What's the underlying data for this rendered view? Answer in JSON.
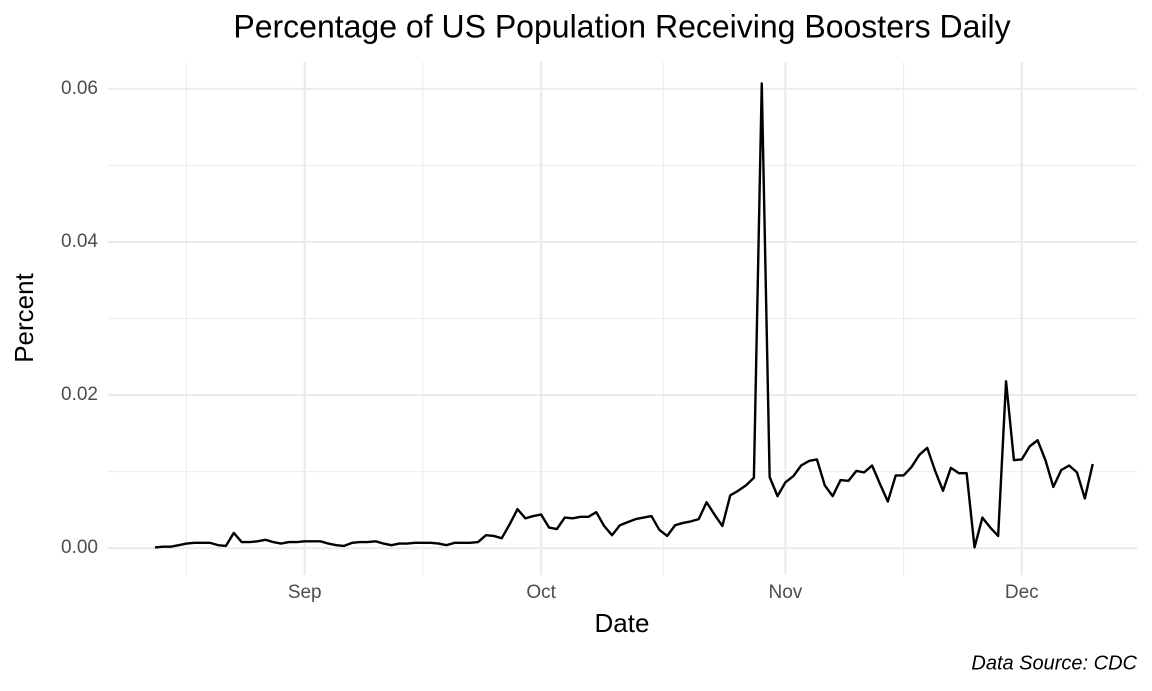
{
  "chart_data": {
    "type": "line",
    "title": "Percentage of US Population Receiving Boosters Daily",
    "xlabel": "Date",
    "ylabel": "Percent",
    "caption": "Data Source: CDC",
    "categories": [
      null,
      null,
      null,
      null,
      null,
      null,
      null,
      null,
      null,
      null,
      null,
      null,
      null,
      null,
      null,
      null,
      null,
      null,
      null,
      "Sep",
      null,
      null,
      null,
      null,
      null,
      null,
      null,
      null,
      null,
      null,
      null,
      null,
      null,
      null,
      null,
      null,
      null,
      null,
      null,
      null,
      null,
      null,
      null,
      null,
      null,
      null,
      null,
      null,
      null,
      "Oct",
      null,
      null,
      null,
      null,
      null,
      null,
      null,
      null,
      null,
      null,
      null,
      null,
      null,
      null,
      null,
      null,
      null,
      null,
      null,
      null,
      null,
      null,
      null,
      null,
      null,
      null,
      null,
      null,
      null,
      null,
      "Nov",
      null,
      null,
      null,
      null,
      null,
      null,
      null,
      null,
      null,
      null,
      null,
      null,
      null,
      null,
      null,
      null,
      null,
      null,
      null,
      null,
      null,
      null,
      null,
      null,
      null,
      null,
      null,
      null,
      null,
      "Dec",
      null,
      null,
      null,
      null,
      null,
      null,
      null,
      null,
      null
    ],
    "series": [
      {
        "name": "Percent",
        "color": "#000000",
        "values": [
          0.0001,
          0.0002,
          0.0002,
          0.0004,
          0.0006,
          0.0007,
          0.0007,
          0.0007,
          0.0004,
          0.0003,
          0.002,
          0.0008,
          0.0008,
          0.0009,
          0.0011,
          0.0008,
          0.0006,
          0.0008,
          0.0008,
          0.0009,
          0.0009,
          0.0009,
          0.0006,
          0.0004,
          0.0003,
          0.0007,
          0.0008,
          0.0008,
          0.0009,
          0.0006,
          0.0004,
          0.0006,
          0.0006,
          0.0007,
          0.0007,
          0.0007,
          0.0006,
          0.0004,
          0.0007,
          0.0007,
          0.0007,
          0.0008,
          0.0017,
          0.0016,
          0.0013,
          0.0031,
          0.0051,
          0.0039,
          0.0042,
          0.0044,
          0.0027,
          0.0025,
          0.004,
          0.0039,
          0.0041,
          0.0041,
          0.0047,
          0.0029,
          0.0017,
          0.003,
          0.0034,
          0.0038,
          0.004,
          0.0042,
          0.0024,
          0.0016,
          0.003,
          0.0033,
          0.0035,
          0.0038,
          0.006,
          0.0044,
          0.0029,
          0.0069,
          0.0075,
          0.0082,
          0.0092,
          0.0607,
          0.0093,
          0.0068,
          0.0086,
          0.0094,
          0.0108,
          0.0114,
          0.0116,
          0.0082,
          0.0068,
          0.0089,
          0.0088,
          0.0101,
          0.0099,
          0.0108,
          0.0084,
          0.0061,
          0.0095,
          0.0095,
          0.0106,
          0.0122,
          0.0131,
          0.0101,
          0.0075,
          0.0105,
          0.0098,
          0.0098,
          0.0001,
          0.004,
          0.0027,
          0.0016,
          0.0218,
          0.0115,
          0.0116,
          0.0133,
          0.0141,
          0.0115,
          0.008,
          0.0102,
          0.0108,
          0.0099,
          0.0065,
          0.011
        ]
      }
    ],
    "ylim": [
      -0.0035,
      0.0635
    ],
    "yticks": [
      {
        "value": 0,
        "label": "0.00"
      },
      0.02,
      0.04,
      0.06
    ],
    "grid": true
  }
}
